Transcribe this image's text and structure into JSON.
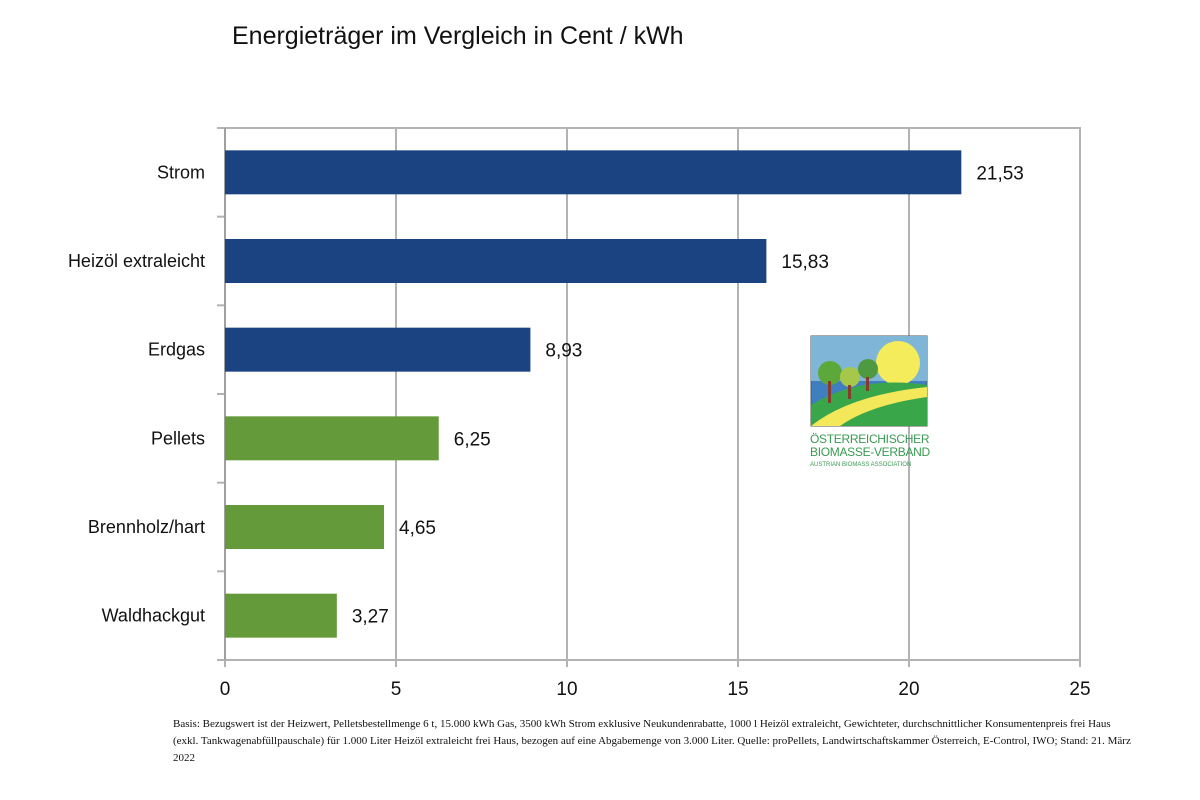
{
  "chart_data": {
    "type": "bar",
    "orientation": "horizontal",
    "title": "Energieträger im Vergleich in Cent / kWh",
    "categories": [
      "Strom",
      "Heizöl extraleicht",
      "Erdgas",
      "Pellets",
      "Brennholz/hart",
      "Waldhackgut"
    ],
    "values": [
      21.53,
      15.83,
      8.93,
      6.25,
      4.65,
      3.27
    ],
    "data_labels": [
      "21,53",
      "15,83",
      "8,93",
      "6,25",
      "4,65",
      "3,27"
    ],
    "bar_colors": [
      "#1b4382",
      "#1b4382",
      "#1b4382",
      "#659a3a",
      "#659a3a",
      "#659a3a"
    ],
    "xlim": [
      0,
      25
    ],
    "x_ticks": [
      "0",
      "5",
      "10",
      "15",
      "20",
      "25"
    ],
    "xlabel": "",
    "ylabel": "",
    "grid": "vertical",
    "legend": "none"
  },
  "logo": {
    "line1": "Österreichischer",
    "line2": "Biomasse-Verband",
    "line3": "Austrian Biomass Association"
  },
  "footnote": "Basis: Bezugswert ist der Heizwert, Pelletsbestellmenge 6 t, 15.000 kWh Gas, 3500 kWh Strom exklusive Neukundenrabatte, 1000 l Heizöl extraleicht, Gewichteter, durchschnittlicher Konsumentenpreis frei Haus (exkl. Tankwagenabfüllpauschale) für 1.000 Liter Heizöl extraleicht frei Haus, bezogen auf eine Abgabemenge von 3.000 Liter. Quelle: proPellets, Landwirtschaftskammer Österreich, E-Control, IWO; Stand: 21. März 2022"
}
